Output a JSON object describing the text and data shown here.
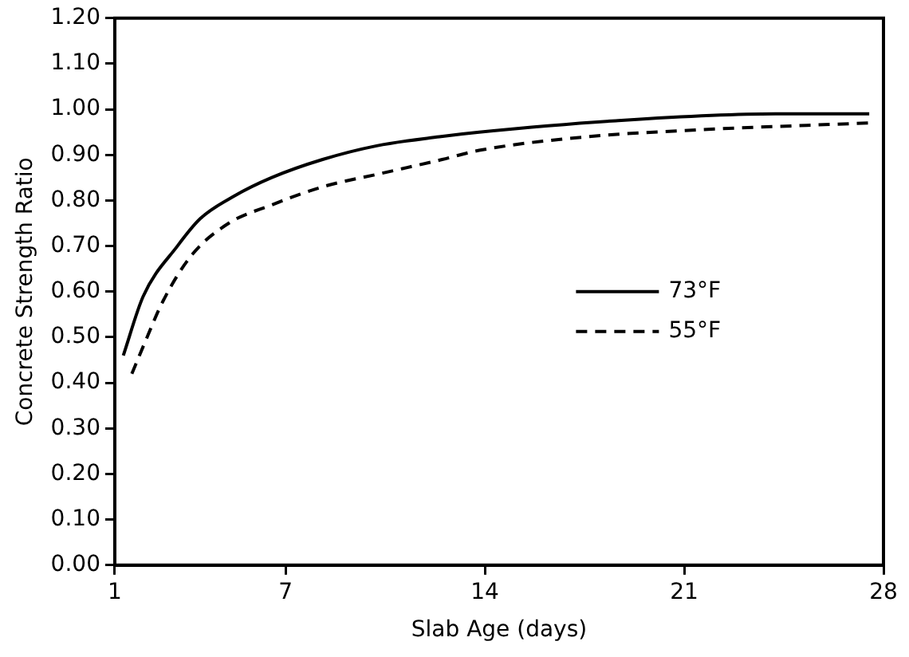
{
  "chart_data": {
    "type": "line",
    "xlabel": "Slab Age (days)",
    "ylabel": "Concrete Strength Ratio",
    "series": [
      {
        "name": "73°F",
        "color": "#000000",
        "line_style": "solid",
        "x": [
          1.3,
          2,
          3.2,
          4,
          5.2,
          6.5,
          8.3,
          10.2,
          12.4,
          13.8,
          18.6,
          24.2,
          27.5
        ],
        "values": [
          0.46,
          0.59,
          0.7,
          0.76,
          0.81,
          0.85,
          0.89,
          0.92,
          0.94,
          0.95,
          0.975,
          0.99,
          0.99
        ]
      },
      {
        "name": "55°F",
        "color": "#000000",
        "line_style": "dashed",
        "x": [
          1.6,
          2,
          2.7,
          3.7,
          5,
          6.5,
          8.3,
          10.4,
          12.5,
          13.8,
          17.6,
          21.5,
          25.3,
          27.5
        ],
        "values": [
          0.42,
          0.48,
          0.58,
          0.68,
          0.75,
          0.79,
          0.83,
          0.86,
          0.89,
          0.91,
          0.94,
          0.955,
          0.965,
          0.97
        ]
      }
    ],
    "xlim": [
      1,
      28
    ],
    "xticks": [
      1,
      7,
      14,
      21,
      28
    ],
    "ylim": [
      0,
      1.2
    ],
    "yticks": [
      {
        "value": 0,
        "label": "0.00"
      },
      {
        "value": 0.1,
        "label": "0.10"
      },
      {
        "value": 0.2,
        "label": "0.20"
      },
      {
        "value": 0.3,
        "label": "0.30"
      },
      {
        "value": 0.4,
        "label": "0.40"
      },
      {
        "value": 0.5,
        "label": "0.50"
      },
      {
        "value": 0.6,
        "label": "0.60"
      },
      {
        "value": 0.7,
        "label": "0.70"
      },
      {
        "value": 0.8,
        "label": "0.80"
      },
      {
        "value": 0.9,
        "label": "0.90"
      },
      {
        "value": 1.0,
        "label": "1.00"
      },
      {
        "value": 1.1,
        "label": "1.10"
      },
      {
        "value": 1.2,
        "label": "1.20"
      }
    ],
    "grid": false,
    "legend": "right",
    "marker": "none"
  }
}
